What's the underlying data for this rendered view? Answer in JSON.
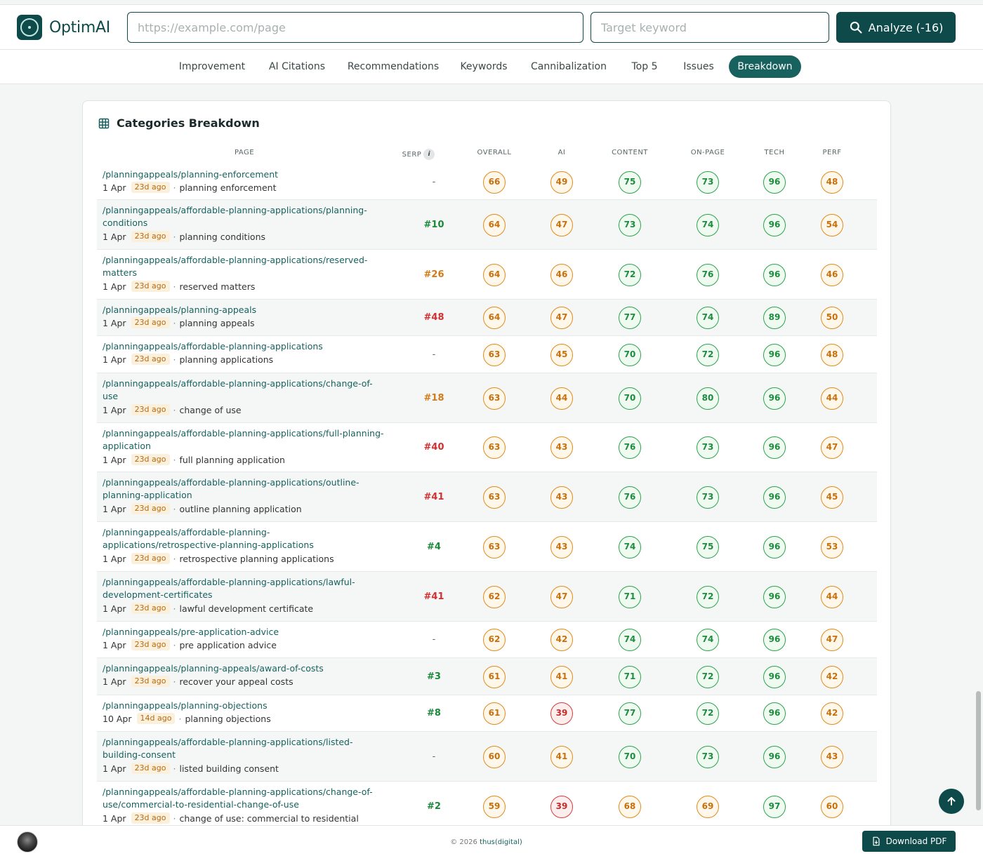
{
  "header": {
    "brand": "OptimAI",
    "url_placeholder": "https://example.com/page",
    "keyword_placeholder": "Target keyword",
    "analyze_label": "Analyze (-16)"
  },
  "tabs": [
    {
      "label": "Improvement"
    },
    {
      "label": "AI Citations"
    },
    {
      "label": "Recommendations"
    },
    {
      "label": "Keywords"
    },
    {
      "label": "Cannibalization"
    },
    {
      "label": "Top 5"
    },
    {
      "label": "Issues"
    },
    {
      "label": "Breakdown",
      "active": true
    }
  ],
  "table": {
    "title": "Categories Breakdown",
    "columns": [
      "PAGE",
      "SERP",
      "OVERALL",
      "AI",
      "CONTENT",
      "ON-PAGE",
      "TECH",
      "PERF"
    ],
    "serp_info": "i",
    "rows": [
      {
        "url_lines": [
          "/planningappeals/planning-enforcement"
        ],
        "date": "1 Apr",
        "ago": "23d ago",
        "keyword": "planning enforcement",
        "serp": "-",
        "serp_color": "dash",
        "scores": [
          66,
          49,
          75,
          73,
          96,
          48
        ]
      },
      {
        "url_lines": [
          "/planningappeals/affordable-planning-applications/planning-",
          "conditions"
        ],
        "date": "1 Apr",
        "ago": "23d ago",
        "keyword": "planning conditions",
        "serp": "#10",
        "serp_color": "green",
        "scores": [
          64,
          47,
          73,
          74,
          96,
          54
        ]
      },
      {
        "url_lines": [
          "/planningappeals/affordable-planning-applications/reserved-",
          "matters"
        ],
        "date": "1 Apr",
        "ago": "23d ago",
        "keyword": "reserved matters",
        "serp": "#26",
        "serp_color": "orange",
        "scores": [
          64,
          46,
          72,
          76,
          96,
          46
        ]
      },
      {
        "url_lines": [
          "/planningappeals/planning-appeals"
        ],
        "date": "1 Apr",
        "ago": "23d ago",
        "keyword": "planning appeals",
        "serp": "#48",
        "serp_color": "red",
        "scores": [
          64,
          47,
          77,
          74,
          89,
          50
        ]
      },
      {
        "url_lines": [
          "/planningappeals/affordable-planning-applications"
        ],
        "date": "1 Apr",
        "ago": "23d ago",
        "keyword": "planning applications",
        "serp": "-",
        "serp_color": "dash",
        "scores": [
          63,
          45,
          70,
          72,
          96,
          48
        ]
      },
      {
        "url_lines": [
          "/planningappeals/affordable-planning-applications/change-of-",
          "use"
        ],
        "date": "1 Apr",
        "ago": "23d ago",
        "keyword": "change of use",
        "serp": "#18",
        "serp_color": "orange",
        "scores": [
          63,
          44,
          70,
          80,
          96,
          44
        ]
      },
      {
        "url_lines": [
          "/planningappeals/affordable-planning-applications/full-planning-",
          "application"
        ],
        "date": "1 Apr",
        "ago": "23d ago",
        "keyword": "full planning application",
        "serp": "#40",
        "serp_color": "red",
        "scores": [
          63,
          43,
          76,
          73,
          96,
          47
        ]
      },
      {
        "url_lines": [
          "/planningappeals/affordable-planning-applications/outline-",
          "planning-application"
        ],
        "date": "1 Apr",
        "ago": "23d ago",
        "keyword": "outline planning application",
        "serp": "#41",
        "serp_color": "red",
        "scores": [
          63,
          43,
          76,
          73,
          96,
          45
        ]
      },
      {
        "url_lines": [
          "/planningappeals/affordable-planning-",
          "applications/retrospective-planning-applications"
        ],
        "date": "1 Apr",
        "ago": "23d ago",
        "keyword": "retrospective planning applications",
        "serp": "#4",
        "serp_color": "green",
        "scores": [
          63,
          43,
          74,
          75,
          96,
          53
        ]
      },
      {
        "url_lines": [
          "/planningappeals/affordable-planning-applications/lawful-",
          "development-certificates"
        ],
        "date": "1 Apr",
        "ago": "23d ago",
        "keyword": "lawful development certificate",
        "serp": "#41",
        "serp_color": "red",
        "scores": [
          62,
          47,
          71,
          72,
          96,
          44
        ]
      },
      {
        "url_lines": [
          "/planningappeals/pre-application-advice"
        ],
        "date": "1 Apr",
        "ago": "23d ago",
        "keyword": "pre application advice",
        "serp": "-",
        "serp_color": "dash",
        "scores": [
          62,
          42,
          74,
          74,
          96,
          47
        ]
      },
      {
        "url_lines": [
          "/planningappeals/planning-appeals/award-of-costs"
        ],
        "date": "1 Apr",
        "ago": "23d ago",
        "keyword": "recover your appeal costs",
        "serp": "#3",
        "serp_color": "green",
        "scores": [
          61,
          41,
          71,
          72,
          96,
          42
        ]
      },
      {
        "url_lines": [
          "/planningappeals/planning-objections"
        ],
        "date": "10 Apr",
        "ago": "14d ago",
        "keyword": "planning objections",
        "serp": "#8",
        "serp_color": "green",
        "scores": [
          61,
          39,
          77,
          72,
          96,
          42
        ]
      },
      {
        "url_lines": [
          "/planningappeals/affordable-planning-applications/listed-",
          "building-consent"
        ],
        "date": "1 Apr",
        "ago": "23d ago",
        "keyword": "listed building consent",
        "serp": "-",
        "serp_color": "dash",
        "scores": [
          60,
          41,
          70,
          73,
          96,
          43
        ]
      },
      {
        "url_lines": [
          "/planningappeals/affordable-planning-applications/change-of-",
          "use/commercial-to-residential-change-of-use"
        ],
        "date": "1 Apr",
        "ago": "23d ago",
        "keyword": "change of use: commercial to residential",
        "serp": "#2",
        "serp_color": "green",
        "scores": [
          59,
          39,
          68,
          69,
          97,
          60
        ]
      }
    ]
  },
  "footer": {
    "copyright_prefix": "© 2026",
    "copyright_brand": "thus(digital)",
    "download_label": "Download PDF"
  },
  "icons": {
    "analyze": "search-icon",
    "title": "table-icon",
    "download": "file-download-icon",
    "scroll": "arrow-up-icon"
  },
  "colors": {
    "brand": "#0e4a4a",
    "active_tab": "#17625f",
    "good": "#2aa34a",
    "warn": "#e08a1c",
    "bad": "#d83a3a"
  }
}
